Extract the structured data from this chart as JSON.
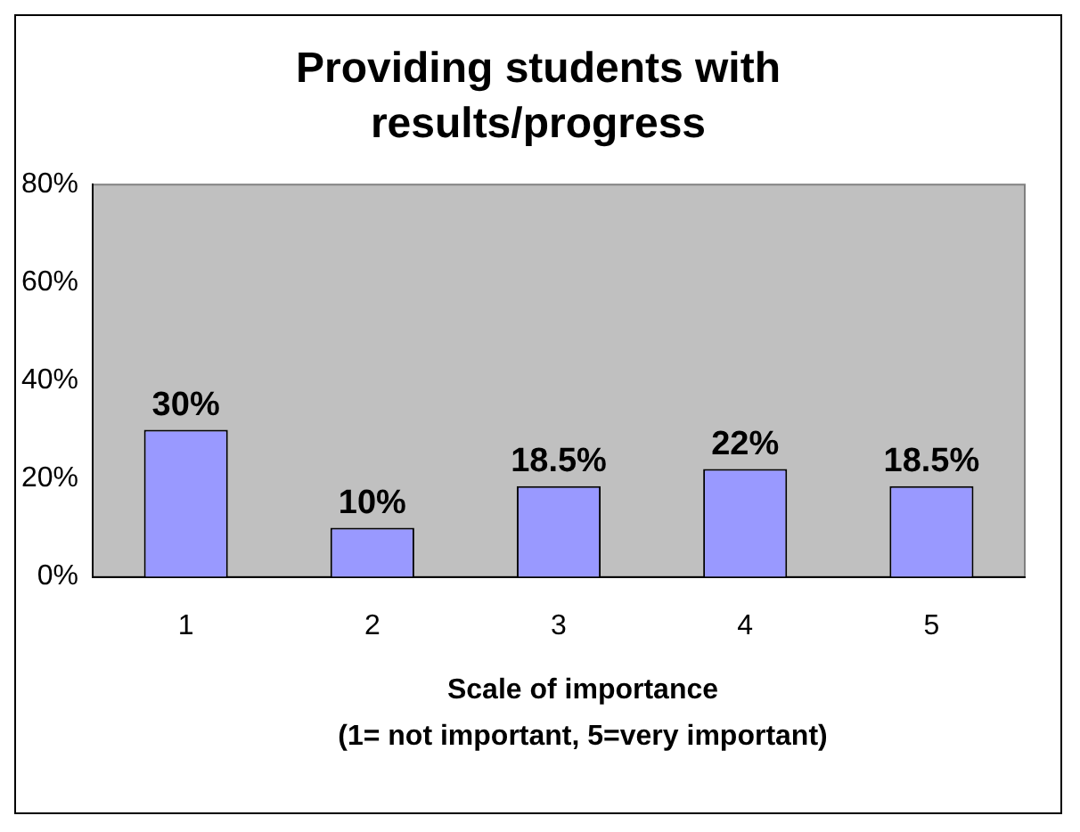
{
  "chart_data": {
    "type": "bar",
    "title": "Providing students with results/progress",
    "xlabel": "Scale of importance\n(1= not important, 5=very important)",
    "categories": [
      "1",
      "2",
      "3",
      "4",
      "5"
    ],
    "values": [
      30,
      10,
      18.5,
      22,
      18.5
    ],
    "color": "#9999ff",
    "value_labels": [
      "30%",
      "10%",
      "18.5%",
      "22%",
      "18.5%"
    ],
    "ylim": [
      0,
      80
    ],
    "yticks": [
      {
        "value": 0,
        "label": "0%"
      },
      {
        "value": 20,
        "label": "20%"
      },
      {
        "value": 40,
        "label": "40%"
      },
      {
        "value": 60,
        "label": "60%"
      },
      {
        "value": 80,
        "label": "80%"
      }
    ],
    "grid": false,
    "legend": false
  }
}
